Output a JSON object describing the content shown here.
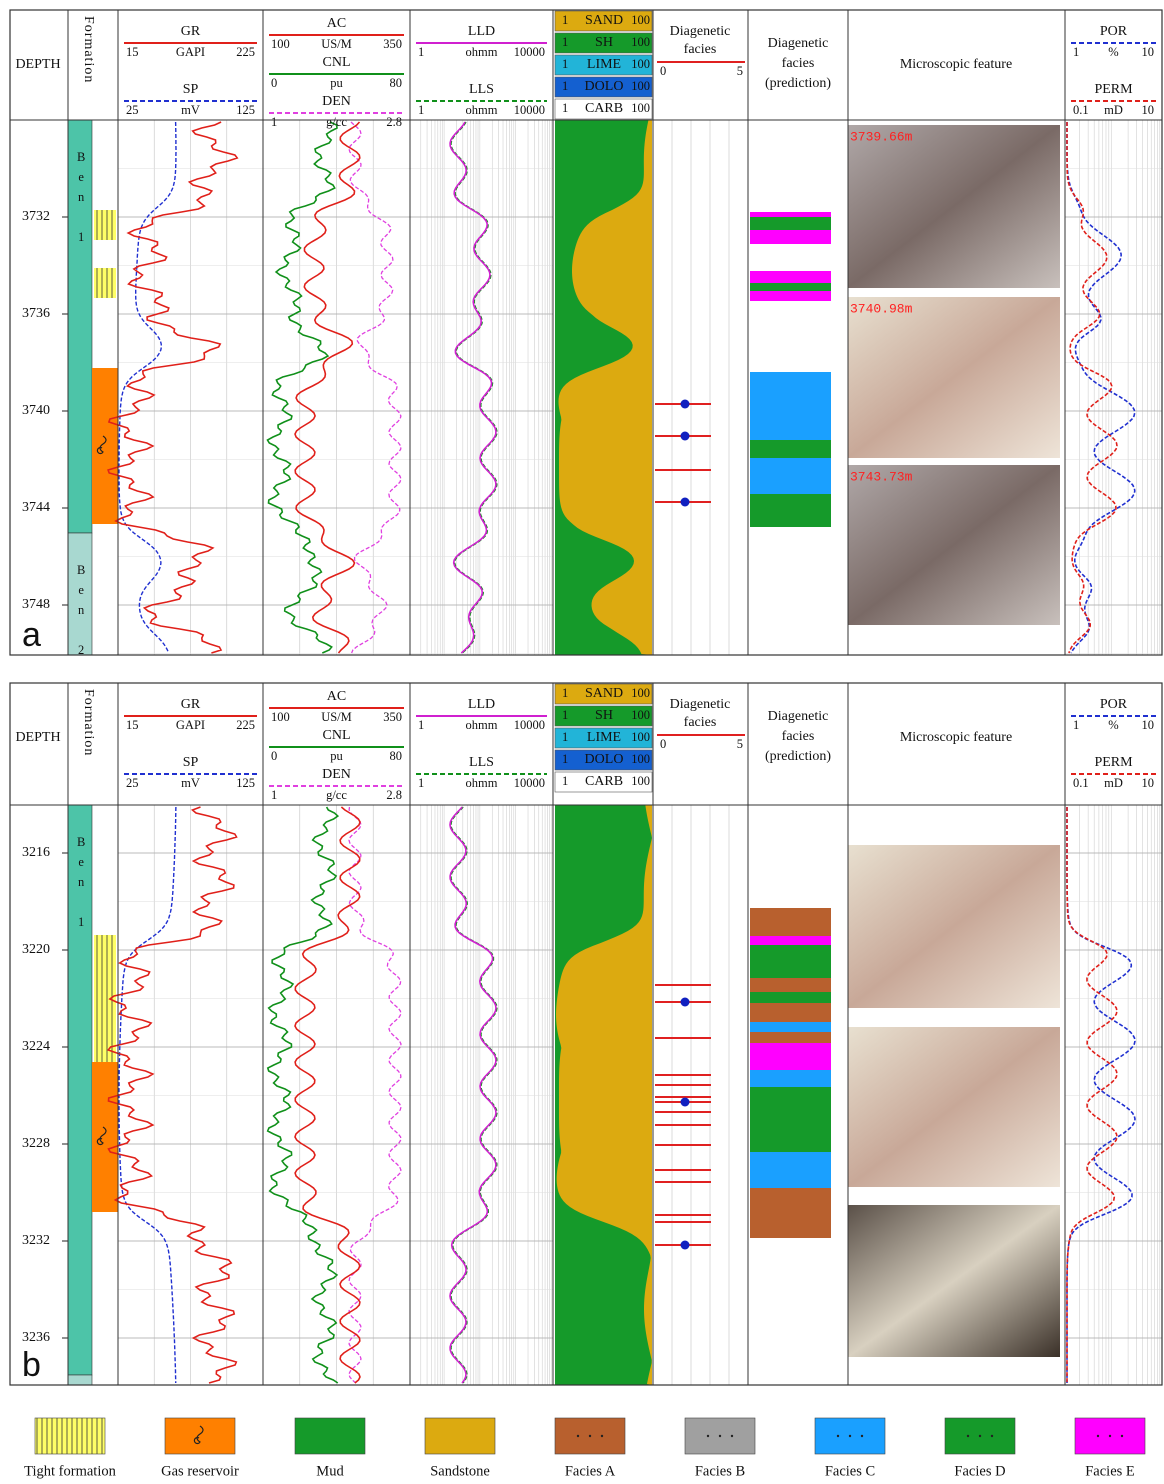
{
  "header": {
    "depth": "DEPTH",
    "formation": "Formation",
    "tracks": [
      {
        "name": "GR",
        "min": 15,
        "unit": "GAPI",
        "max": 225,
        "color": "#e0201a",
        "dashed": false
      },
      {
        "name": "SP",
        "min": 25,
        "unit": "mV",
        "max": 125,
        "color": "#2030d0",
        "dashed": true
      },
      {
        "name": "AC",
        "min": 100,
        "unit": "US/M",
        "max": 350,
        "color": "#e0201a",
        "dashed": false
      },
      {
        "name": "CNL",
        "min": 0,
        "unit": "pu",
        "max": 80,
        "color": "#10901a",
        "dashed": false
      },
      {
        "name": "DEN",
        "min": 1,
        "unit": "g/cc",
        "max": 2.8,
        "color": "#e040e0",
        "dashed": true
      },
      {
        "name": "LLD",
        "min": 1,
        "unit": "ohmm",
        "max": 10000,
        "color": "#d020d0",
        "dashed": false
      },
      {
        "name": "LLS",
        "min": 1,
        "unit": "ohmm",
        "max": 10000,
        "color": "#10901a",
        "dashed": true
      },
      {
        "name": "POR",
        "min": 1,
        "unit": "%",
        "max": 10,
        "color": "#2030d0",
        "dashed": true
      },
      {
        "name": "PERM",
        "min": 0.1,
        "unit": "mD",
        "max": 10,
        "color": "#e0201a",
        "dashed": true
      }
    ],
    "lithology": [
      {
        "name": "SAND",
        "min": 1,
        "max": 100,
        "color": "#dcaa10"
      },
      {
        "name": "SH",
        "min": 1,
        "max": 100,
        "color": "#159a2a"
      },
      {
        "name": "LIME",
        "min": 1,
        "max": 100,
        "color": "#22b4d8"
      },
      {
        "name": "DOLO",
        "min": 1,
        "max": 100,
        "color": "#1460d0"
      },
      {
        "name": "CARB",
        "min": 1,
        "max": 100,
        "color": "#ffffff"
      }
    ],
    "facies_track": {
      "title": [
        "Diagenetic",
        "facies"
      ],
      "min": 0,
      "max": 5
    },
    "prediction_title": [
      "Diagenetic",
      "facies",
      "(prediction)"
    ],
    "micro_title": "Microscopic feature"
  },
  "panels": [
    {
      "label": "a",
      "depth_ticks": [
        3732,
        3736,
        3740,
        3744,
        3748
      ],
      "formations": [
        "Ben 1",
        "Ben 2"
      ],
      "photo_labels": [
        "3739.66m",
        "3740.98m",
        "3743.73m"
      ]
    },
    {
      "label": "b",
      "depth_ticks": [
        3216,
        3220,
        3224,
        3228,
        3232,
        3236
      ],
      "formations": [
        "Ben 1"
      ]
    }
  ],
  "legend": [
    {
      "label": "Tight formation",
      "color": "#ffff66"
    },
    {
      "label": "Gas reservoir",
      "color": "#ff8000"
    },
    {
      "label": "Mud",
      "color": "#159a2a"
    },
    {
      "label": "Sandstone",
      "color": "#dcaa10"
    },
    {
      "label": "Facies A",
      "color": "#b8602e"
    },
    {
      "label": "Facies B",
      "color": "#a0a0a0"
    },
    {
      "label": "Facies C",
      "color": "#1aa0ff"
    },
    {
      "label": "Facies D",
      "color": "#159a2a"
    },
    {
      "label": "Facies E",
      "color": "#ff00ff"
    }
  ]
}
